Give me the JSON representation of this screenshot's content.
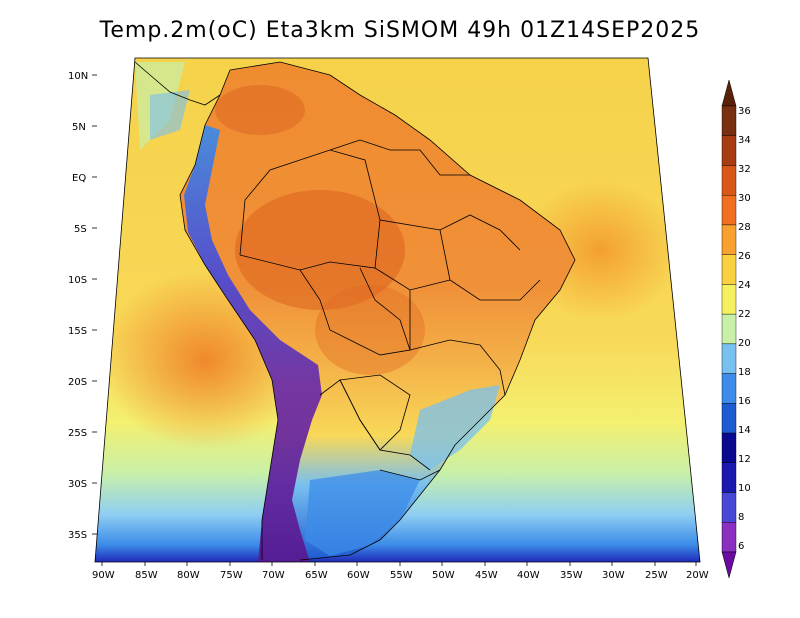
{
  "title": "Temp.2m(oC) Eta3km SiSMOM 49h 01Z14SEP2025",
  "axes": {
    "lat_labels": [
      "10N",
      "5N",
      "EQ",
      "5S",
      "10S",
      "15S",
      "20S",
      "25S",
      "30S",
      "35S"
    ],
    "lon_labels": [
      "90W",
      "85W",
      "80W",
      "75W",
      "70W",
      "65W",
      "60W",
      "55W",
      "50W",
      "45W",
      "40W",
      "35W",
      "30W",
      "25W",
      "20W"
    ]
  },
  "colorbar": {
    "labels": [
      "6",
      "8",
      "10",
      "12",
      "14",
      "16",
      "18",
      "20",
      "22",
      "24",
      "26",
      "28",
      "30",
      "32",
      "34",
      "36"
    ],
    "colors": [
      "#6a0aa0",
      "#8a2fc0",
      "#4848d8",
      "#1a1ab0",
      "#0a0a90",
      "#1e5ad0",
      "#3c8ce8",
      "#78c0f0",
      "#c8f0a8",
      "#f4f060",
      "#f8d040",
      "#f8a030",
      "#f07020",
      "#d85818",
      "#a83c14",
      "#783010",
      "#5a2008"
    ]
  },
  "field": {
    "ocean_north_color": "#f6d24a",
    "ocean_south_color": "#9ad0f4",
    "amazon_color": "#f08a30",
    "andes_color": "#6a2aa8"
  }
}
